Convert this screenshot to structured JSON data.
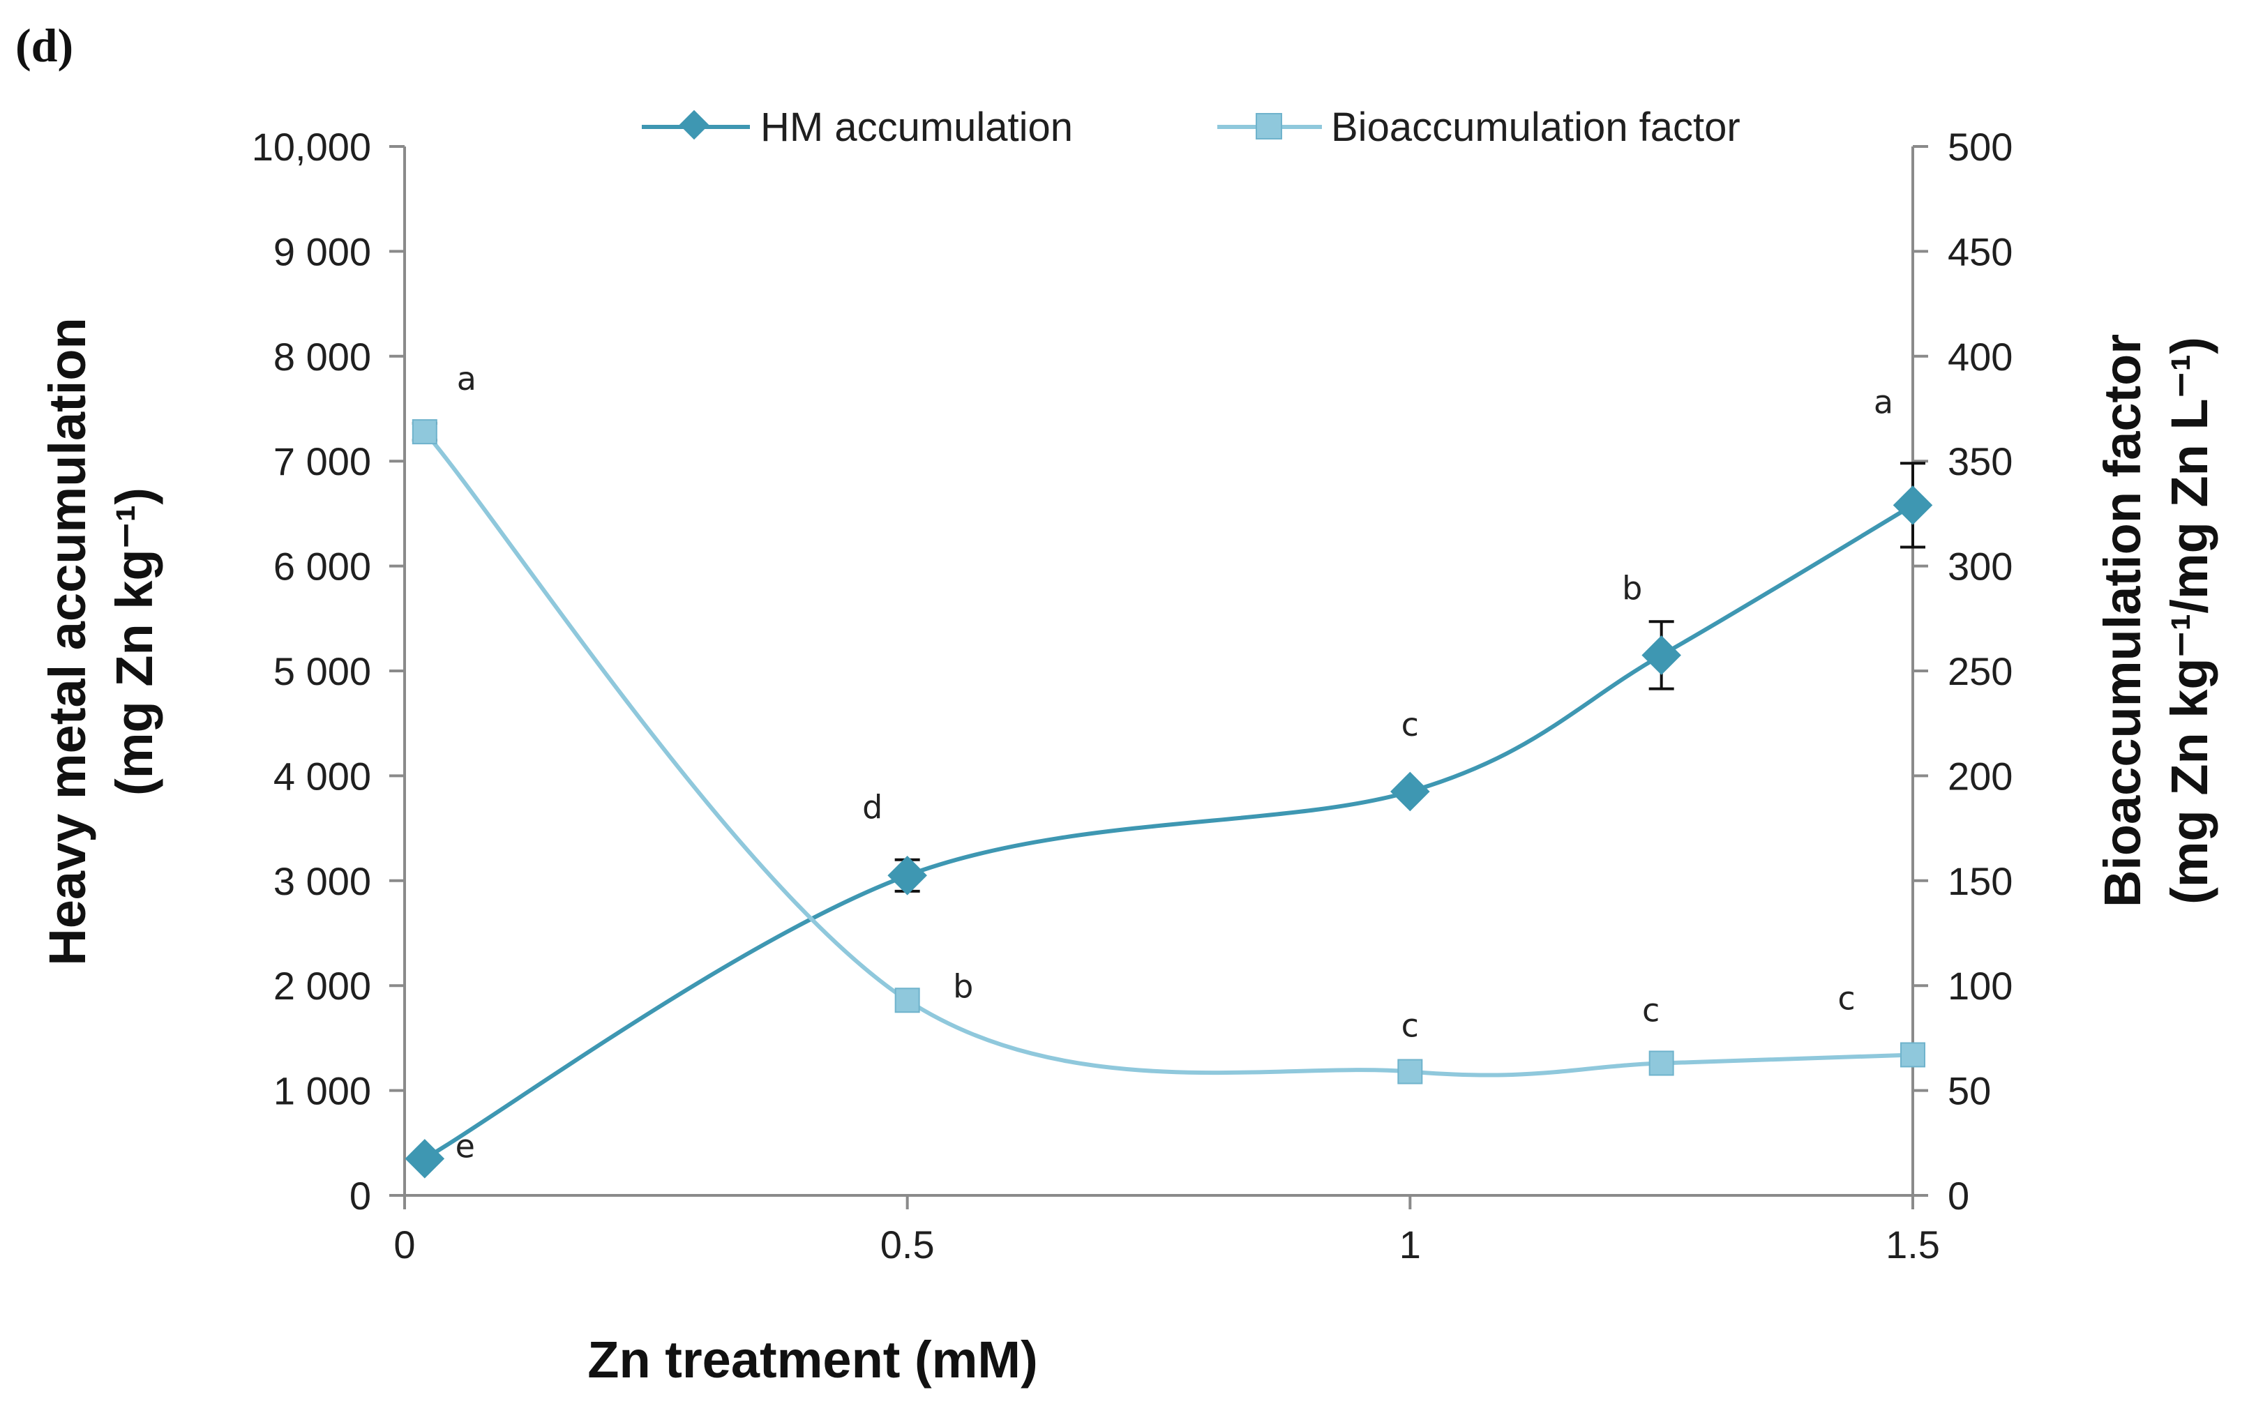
{
  "panel_label": "(d)",
  "chart_data": {
    "type": "line",
    "title": "",
    "xlabel": "Zn treatment (mM)",
    "ylabel_left": [
      "Heavy metal accumulation",
      "(mg Zn kg⁻¹)"
    ],
    "ylabel_right": [
      "Bioaccumulation factor",
      "(mg Zn kg⁻¹/mg Zn L⁻¹)"
    ],
    "xlim": [
      0,
      1.5
    ],
    "ylim_left": [
      0,
      10000
    ],
    "ylim_right": [
      0,
      500
    ],
    "x_ticks": [
      "0",
      "0.5",
      "1",
      "1.5"
    ],
    "y_ticks_left": [
      "0",
      "1 000",
      "2 000",
      "3 000",
      "4 000",
      "5 000",
      "6 000",
      "7 000",
      "8 000",
      "9 000",
      "10,000"
    ],
    "y_ticks_right": [
      "0",
      "50",
      "100",
      "150",
      "200",
      "250",
      "300",
      "350",
      "400",
      "450",
      "500"
    ],
    "legend_position": "top",
    "series": [
      {
        "name": "HM accumulation",
        "axis": "left",
        "marker": "diamond",
        "color": "#3e97b2",
        "x": [
          0.02,
          0.5,
          1.0,
          1.25,
          1.5
        ],
        "values": [
          350,
          3050,
          3850,
          5150,
          6580
        ],
        "errors": [
          null,
          150,
          null,
          320,
          400
        ],
        "labels": [
          "e",
          "d",
          "c",
          "b",
          "a"
        ]
      },
      {
        "name": "Bioaccumulation factor",
        "axis": "right",
        "marker": "square",
        "color": "#8fc8dc",
        "x": [
          0.02,
          0.5,
          1.0,
          1.25,
          1.5
        ],
        "values": [
          364,
          93,
          59,
          63,
          67
        ],
        "errors": [
          4,
          null,
          null,
          null,
          null
        ],
        "labels": [
          "a",
          "b",
          "c",
          "c",
          "c"
        ]
      }
    ]
  }
}
